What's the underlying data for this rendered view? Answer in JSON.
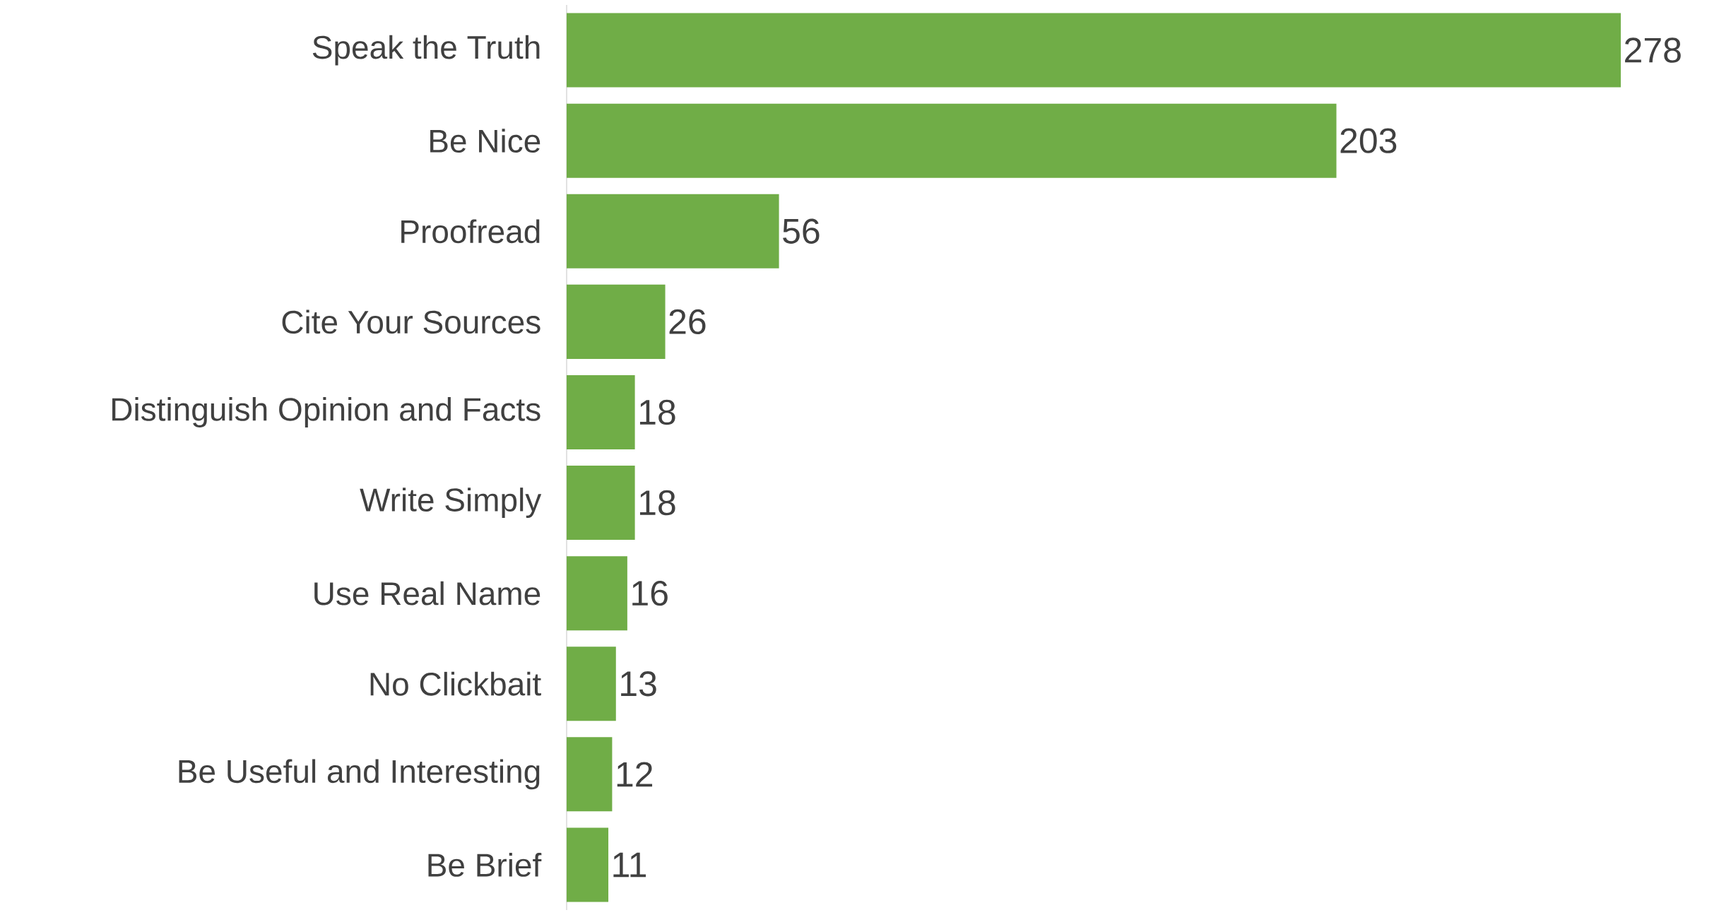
{
  "chart_data": {
    "type": "bar",
    "orientation": "horizontal",
    "data_labels": true,
    "color": "#70ad47",
    "categories": [
      "Speak the Truth",
      "Be Nice",
      "Proofread",
      "Cite Your Sources",
      "Distinguish Opinion and Facts",
      "Write Simply",
      "Use Real Name",
      "No Clickbait",
      "Be Useful and Interesting",
      "Be Brief"
    ],
    "values": [
      278,
      203,
      56,
      26,
      18,
      18,
      16,
      13,
      12,
      11
    ]
  }
}
